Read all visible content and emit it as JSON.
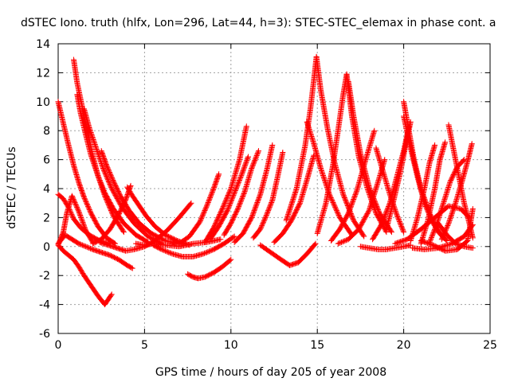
{
  "chart_data": {
    "type": "scatter",
    "title": "dSTEC Iono. truth (hlfx, Lon=296, Lat=44, h=3): STEC-STEC_elemax in phase cont. a",
    "xlabel": "GPS time / hours of day 205 of year 2008",
    "ylabel": "dSTEC  / TECUs",
    "xlim": [
      0,
      25
    ],
    "ylim": [
      -6,
      14
    ],
    "xticks": [
      0,
      5,
      10,
      15,
      20,
      25
    ],
    "yticks": [
      -6,
      -4,
      -2,
      0,
      2,
      4,
      6,
      8,
      10,
      12,
      14
    ],
    "grid": true,
    "marker": "+",
    "color": "#ff0000",
    "series": [
      {
        "x": [
          0,
          0.3,
          0.6,
          0.9,
          1.2,
          1.5,
          1.9,
          2.3,
          2.7,
          3.1
        ],
        "y": [
          0.1,
          -0.3,
          -0.6,
          -0.9,
          -1.4,
          -2.0,
          -2.7,
          -3.4,
          -4.0,
          -3.3
        ]
      },
      {
        "x": [
          0,
          0.4,
          0.8,
          1.2,
          1.6,
          2.0,
          2.5,
          3.0,
          3.5,
          4.0,
          4.3
        ],
        "y": [
          0.2,
          0.8,
          0.5,
          0.2,
          0.0,
          -0.2,
          -0.4,
          -0.6,
          -0.9,
          -1.3,
          -1.5
        ]
      },
      {
        "x": [
          0,
          0.3,
          0.6,
          0.9,
          1.2,
          1.5,
          1.9,
          2.3,
          2.8,
          3.3
        ],
        "y": [
          10.0,
          8.5,
          7.0,
          5.6,
          4.4,
          3.4,
          2.3,
          1.4,
          0.6,
          0.2
        ]
      },
      {
        "x": [
          0,
          0.3,
          0.5,
          0.8,
          1.2,
          1.6,
          2.0
        ],
        "y": [
          0.1,
          1.0,
          2.3,
          3.5,
          2.4,
          1.1,
          0.3
        ]
      },
      {
        "x": [
          0,
          0.3,
          0.6,
          0.9,
          1.3,
          1.8,
          2.4,
          3.0
        ],
        "y": [
          3.6,
          3.3,
          2.7,
          1.9,
          1.3,
          0.8,
          0.4,
          0.2
        ]
      },
      {
        "x": [
          0.9,
          1.1,
          1.4,
          1.7,
          2.0,
          2.3,
          2.7,
          3.2,
          3.8
        ],
        "y": [
          12.9,
          11.3,
          9.6,
          7.9,
          6.3,
          4.9,
          3.5,
          2.1,
          1.0
        ]
      },
      {
        "x": [
          1.1,
          1.3,
          1.6,
          1.9,
          2.3,
          2.7,
          3.2,
          3.8,
          4.5,
          5.2
        ],
        "y": [
          10.5,
          9.2,
          7.7,
          6.3,
          4.9,
          3.7,
          2.6,
          1.6,
          0.8,
          0.3
        ]
      },
      {
        "x": [
          1.5,
          1.8,
          2.2,
          2.6,
          3.1,
          3.7,
          4.4,
          5.2,
          6.0
        ],
        "y": [
          9.5,
          8.2,
          6.8,
          5.4,
          4.0,
          2.7,
          1.6,
          0.7,
          0.2
        ]
      },
      {
        "x": [
          2.5,
          2.8,
          3.2,
          3.6,
          4.1,
          4.7,
          5.4,
          6.2,
          7.0
        ],
        "y": [
          6.6,
          5.6,
          4.5,
          3.5,
          2.5,
          1.6,
          0.9,
          0.4,
          0.2
        ]
      },
      {
        "x": [
          4.0,
          4.3,
          4.7,
          5.1,
          5.6,
          6.2,
          6.9,
          7.6
        ],
        "y": [
          4.1,
          3.5,
          2.8,
          2.1,
          1.4,
          0.8,
          0.4,
          0.1
        ]
      },
      {
        "x": [
          2.0,
          2.5,
          3.0,
          3.5,
          3.9,
          4.2
        ],
        "y": [
          0.2,
          0.5,
          1.2,
          2.2,
          3.2,
          4.2
        ]
      },
      {
        "x": [
          2.4,
          2.9,
          3.4,
          3.9,
          4.4,
          5.0,
          5.6,
          6.3,
          7.0,
          7.7
        ],
        "y": [
          0.3,
          0.1,
          -0.1,
          -0.3,
          -0.2,
          0.0,
          0.4,
          1.1,
          2.0,
          3.0
        ]
      },
      {
        "x": [
          4.5,
          5.0,
          5.5,
          6.2,
          7.0,
          7.8,
          8.6,
          9.4
        ],
        "y": [
          0.2,
          0.1,
          0.2,
          0.1,
          0.0,
          0.2,
          0.3,
          0.5
        ]
      },
      {
        "x": [
          5.5,
          6.0,
          6.6,
          7.2,
          7.8,
          8.4,
          9.0,
          9.6,
          10.2
        ],
        "y": [
          0.1,
          -0.2,
          -0.5,
          -0.7,
          -0.7,
          -0.5,
          -0.2,
          0.2,
          0.7
        ]
      },
      {
        "x": [
          7.5,
          7.8,
          8.1,
          8.5,
          9.0,
          9.5,
          10.0
        ],
        "y": [
          -1.9,
          -2.1,
          -2.2,
          -2.1,
          -1.8,
          -1.4,
          -0.9
        ]
      },
      {
        "x": [
          7.0,
          7.6,
          8.2,
          8.6,
          9.0,
          9.3
        ],
        "y": [
          0.2,
          0.7,
          1.7,
          2.8,
          4.0,
          5.0
        ]
      },
      {
        "x": [
          8.5,
          9.0,
          9.5,
          10.0,
          10.5,
          10.9
        ],
        "y": [
          0.3,
          1.3,
          2.6,
          4.0,
          6.0,
          8.3
        ]
      },
      {
        "x": [
          8.8,
          9.3,
          9.8,
          10.2,
          10.6,
          11.0
        ],
        "y": [
          0.5,
          1.4,
          2.5,
          3.7,
          4.9,
          6.2
        ]
      },
      {
        "x": [
          9.6,
          10.0,
          10.4,
          10.8,
          11.2,
          11.6
        ],
        "y": [
          0.8,
          1.6,
          2.6,
          3.8,
          5.4,
          6.6
        ]
      },
      {
        "x": [
          10.2,
          10.7,
          11.2,
          11.7,
          12.1,
          12.4
        ],
        "y": [
          0.3,
          0.9,
          2.0,
          3.6,
          5.4,
          7.0
        ]
      },
      {
        "x": [
          11.3,
          11.7,
          12.0,
          12.4,
          12.7,
          13.0
        ],
        "y": [
          0.6,
          1.2,
          2.0,
          3.2,
          4.8,
          6.5
        ]
      },
      {
        "x": [
          11.7,
          12.3,
          12.9,
          13.4,
          13.9,
          14.4,
          14.9
        ],
        "y": [
          0.1,
          -0.4,
          -0.9,
          -1.3,
          -1.1,
          -0.5,
          0.2
        ]
      },
      {
        "x": [
          12.5,
          13.0,
          13.5,
          14.0,
          14.4,
          14.8
        ],
        "y": [
          0.3,
          0.9,
          1.8,
          3.0,
          4.6,
          6.3
        ]
      },
      {
        "x": [
          13.2,
          13.8,
          14.3,
          14.6,
          14.8,
          14.95
        ],
        "y": [
          1.8,
          4.0,
          7.0,
          9.5,
          11.5,
          13.1
        ]
      },
      {
        "x": [
          14.95,
          15.2,
          15.6,
          16.0,
          16.5,
          17.1,
          17.7
        ],
        "y": [
          13.1,
          10.8,
          8.1,
          5.8,
          3.6,
          1.8,
          0.7
        ]
      },
      {
        "x": [
          14.4,
          14.8,
          15.2,
          15.7,
          16.3,
          17.0
        ],
        "y": [
          8.6,
          7.1,
          5.4,
          3.6,
          2.0,
          0.8
        ]
      },
      {
        "x": [
          15.0,
          15.5,
          15.9,
          16.2,
          16.5,
          16.7
        ],
        "y": [
          0.9,
          3.0,
          5.6,
          8.0,
          10.5,
          11.9
        ]
      },
      {
        "x": [
          16.7,
          17.0,
          17.4,
          17.9,
          18.4,
          19.0
        ],
        "y": [
          11.9,
          9.0,
          6.2,
          4.0,
          2.3,
          1.0
        ]
      },
      {
        "x": [
          16.8,
          17.1,
          17.5,
          18.0,
          18.6,
          19.3
        ],
        "y": [
          11.4,
          9.0,
          6.4,
          4.1,
          2.3,
          1.0
        ]
      },
      {
        "x": [
          15.8,
          16.3,
          16.8,
          17.3,
          17.8,
          18.3
        ],
        "y": [
          0.4,
          1.2,
          2.3,
          3.9,
          6.0,
          8.0
        ]
      },
      {
        "x": [
          16.2,
          16.8,
          17.4,
          18.0,
          18.5,
          18.9
        ],
        "y": [
          0.2,
          0.5,
          1.2,
          2.5,
          4.4,
          6.0
        ]
      },
      {
        "x": [
          17.5,
          18.0,
          18.5,
          19.0,
          19.5,
          20.0,
          20.4
        ],
        "y": [
          0.0,
          -0.1,
          -0.2,
          -0.2,
          -0.1,
          0.0,
          0.1
        ]
      },
      {
        "x": [
          18.2,
          18.7,
          19.2,
          19.6,
          20.0,
          20.3
        ],
        "y": [
          0.5,
          1.5,
          3.0,
          4.8,
          6.6,
          8.3
        ]
      },
      {
        "x": [
          18.4,
          18.8,
          19.2,
          19.6,
          20.0
        ],
        "y": [
          6.8,
          5.2,
          3.6,
          2.2,
          1.0
        ]
      },
      {
        "x": [
          19.0,
          19.4,
          19.8,
          20.1,
          20.4
        ],
        "y": [
          1.2,
          3.1,
          5.1,
          6.9,
          8.6
        ]
      },
      {
        "x": [
          20.0,
          20.3,
          20.6,
          21.0,
          21.5,
          22.0,
          22.5
        ],
        "y": [
          10.0,
          8.0,
          6.0,
          4.0,
          2.3,
          1.0,
          0.4
        ]
      },
      {
        "x": [
          20.0,
          20.4,
          20.8,
          21.2,
          21.7,
          22.3
        ],
        "y": [
          9.0,
          6.8,
          4.8,
          3.0,
          1.6,
          0.6
        ]
      },
      {
        "x": [
          20.4,
          20.8,
          21.2,
          21.5,
          21.8
        ],
        "y": [
          0.4,
          2.0,
          4.0,
          5.8,
          7.0
        ]
      },
      {
        "x": [
          21.0,
          21.4,
          21.8,
          22.1,
          22.4
        ],
        "y": [
          0.2,
          1.8,
          4.0,
          6.0,
          7.2
        ]
      },
      {
        "x": [
          21.5,
          21.9,
          22.3,
          22.7,
          23.1,
          23.5
        ],
        "y": [
          0.3,
          1.5,
          3.0,
          4.5,
          5.5,
          6.0
        ]
      },
      {
        "x": [
          22.2,
          22.6,
          23.0,
          23.4,
          23.7,
          23.95
        ],
        "y": [
          0.5,
          1.6,
          3.0,
          4.6,
          5.9,
          7.1
        ]
      },
      {
        "x": [
          22.6,
          22.9,
          23.2,
          23.5,
          23.8,
          24.0
        ],
        "y": [
          8.4,
          6.6,
          4.8,
          3.0,
          1.6,
          0.6
        ]
      },
      {
        "x": [
          19.5,
          20.2,
          21.0,
          21.8,
          22.6,
          23.3,
          23.8
        ],
        "y": [
          0.2,
          0.5,
          1.2,
          2.0,
          2.8,
          2.6,
          2.0
        ]
      },
      {
        "x": [
          20.5,
          21.2,
          22.0,
          22.8,
          23.5,
          24.0
        ],
        "y": [
          -0.1,
          -0.2,
          -0.1,
          0.2,
          0.7,
          1.5
        ]
      },
      {
        "x": [
          21.0,
          21.7,
          22.4,
          23.1,
          23.7,
          24.0
        ],
        "y": [
          0.4,
          0.1,
          -0.3,
          -0.2,
          0.4,
          2.6
        ]
      },
      {
        "x": [
          22.0,
          22.5,
          23.0,
          23.5,
          24.0
        ],
        "y": [
          1.6,
          0.8,
          0.2,
          0.0,
          -0.1
        ]
      }
    ]
  }
}
